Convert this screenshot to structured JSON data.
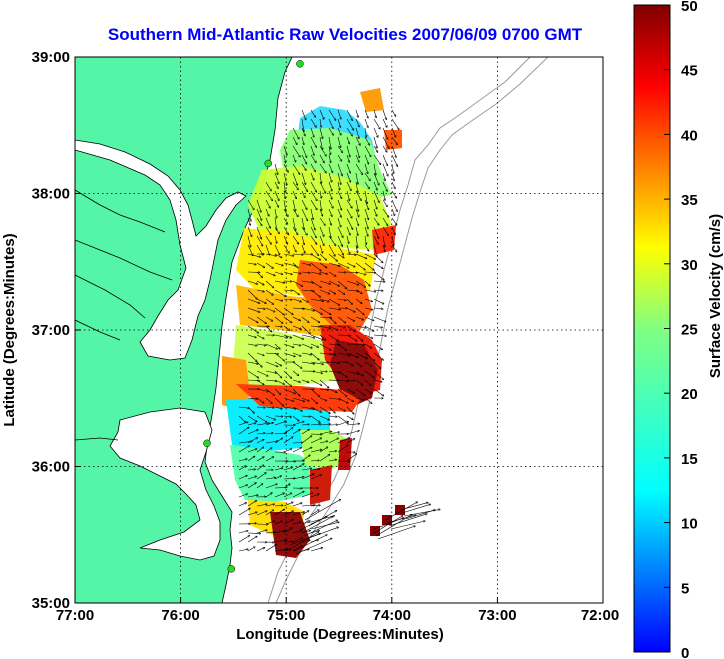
{
  "title": "Southern Mid-Atlantic Raw Velocities 2007/06/09 0700 GMT",
  "xlabel": "Longitude (Degrees:Minutes)",
  "ylabel": "Latitude (Degrees:Minutes)",
  "colorbar_label": "Surface Velocity (cm/s)",
  "x_ticks": [
    "77:00",
    "76:00",
    "75:00",
    "74:00",
    "73:00",
    "72:00"
  ],
  "y_ticks": [
    "39:00",
    "38:00",
    "37:00",
    "36:00",
    "35:00"
  ],
  "colorbar_ticks": [
    "50",
    "45",
    "40",
    "35",
    "30",
    "25",
    "20",
    "15",
    "10",
    "5",
    "0"
  ],
  "colors": {
    "title": "#0000ff",
    "land": "#55f5a8",
    "ocean": "#ffffff",
    "coastline": "#000000",
    "bathymetry": "#9a9a9a",
    "station": "#22dd22",
    "grid": "#000000"
  },
  "map_data": {
    "lon_range": [
      -77,
      -72
    ],
    "lat_range": [
      35,
      39
    ],
    "colorbar_range": [
      0,
      50
    ],
    "colormap": "jet",
    "grid": "dotted",
    "stations": [
      {
        "lon": -74.87,
        "lat": 38.95
      },
      {
        "lon": -75.17,
        "lat": 38.22
      },
      {
        "lon": -75.75,
        "lat": 36.17
      },
      {
        "lon": -75.52,
        "lat": 35.25
      }
    ]
  }
}
